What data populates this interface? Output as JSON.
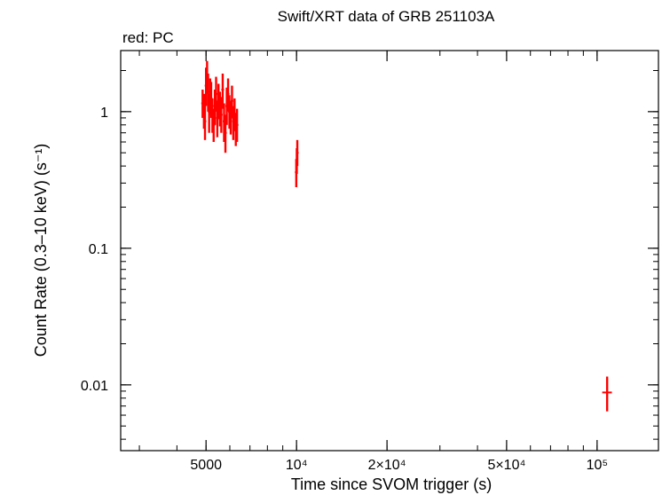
{
  "chart_data": {
    "type": "scatter",
    "title": "Swift/XRT data of GRB 251103A",
    "legend_text": "red: PC",
    "legend_placement": "top-left",
    "xlabel": "Time since SVOM trigger (s)",
    "ylabel": "Count Rate (0.3–10 keV) (s⁻¹)",
    "x_scale": "log",
    "y_scale": "log",
    "xlim": [
      2600,
      160000
    ],
    "ylim": [
      0.0033,
      2.8
    ],
    "grid": false,
    "x_ticks": [
      {
        "value": 5000,
        "label": "5000"
      },
      {
        "value": 10000,
        "label": "10⁴"
      },
      {
        "value": 20000,
        "label": "2×10⁴"
      },
      {
        "value": 50000,
        "label": "5×10⁴"
      },
      {
        "value": 100000,
        "label": "10⁵"
      }
    ],
    "y_ticks": [
      {
        "value": 1,
        "label": "1"
      },
      {
        "value": 0.1,
        "label": "0.1"
      },
      {
        "value": 0.01,
        "label": "0.01"
      }
    ],
    "series_color": "#ff0000",
    "series": [
      {
        "points": [
          {
            "x": 4870,
            "y": 1.15,
            "ylo": 0.9,
            "yhi": 1.45
          },
          {
            "x": 4920,
            "y": 1.05,
            "ylo": 0.75,
            "yhi": 1.35
          },
          {
            "x": 4960,
            "y": 0.85,
            "ylo": 0.62,
            "yhi": 1.1
          },
          {
            "x": 5000,
            "y": 1.55,
            "ylo": 1.1,
            "yhi": 2.1
          },
          {
            "x": 5040,
            "y": 1.8,
            "ylo": 1.35,
            "yhi": 2.35
          },
          {
            "x": 5080,
            "y": 1.4,
            "ylo": 1.0,
            "yhi": 1.9
          },
          {
            "x": 5120,
            "y": 1.0,
            "ylo": 0.7,
            "yhi": 1.35
          },
          {
            "x": 5160,
            "y": 1.3,
            "ylo": 0.95,
            "yhi": 1.75
          },
          {
            "x": 5200,
            "y": 1.25,
            "ylo": 0.9,
            "yhi": 1.65
          },
          {
            "x": 5250,
            "y": 0.95,
            "ylo": 0.7,
            "yhi": 1.25
          },
          {
            "x": 5300,
            "y": 0.8,
            "ylo": 0.6,
            "yhi": 1.05
          },
          {
            "x": 5350,
            "y": 1.1,
            "ylo": 0.8,
            "yhi": 1.45
          },
          {
            "x": 5400,
            "y": 1.35,
            "ylo": 1.0,
            "yhi": 1.8
          },
          {
            "x": 5450,
            "y": 0.9,
            "ylo": 0.65,
            "yhi": 1.2
          },
          {
            "x": 5500,
            "y": 1.2,
            "ylo": 0.88,
            "yhi": 1.6
          },
          {
            "x": 5560,
            "y": 1.05,
            "ylo": 0.78,
            "yhi": 1.4
          },
          {
            "x": 5620,
            "y": 0.95,
            "ylo": 0.7,
            "yhi": 1.28
          },
          {
            "x": 5680,
            "y": 1.45,
            "ylo": 1.05,
            "yhi": 1.9
          },
          {
            "x": 5740,
            "y": 0.85,
            "ylo": 0.6,
            "yhi": 1.15
          },
          {
            "x": 5800,
            "y": 0.7,
            "ylo": 0.5,
            "yhi": 0.95
          },
          {
            "x": 5860,
            "y": 1.1,
            "ylo": 0.8,
            "yhi": 1.5
          },
          {
            "x": 5920,
            "y": 1.35,
            "ylo": 1.0,
            "yhi": 1.75
          },
          {
            "x": 5980,
            "y": 1.0,
            "ylo": 0.75,
            "yhi": 1.32
          },
          {
            "x": 6040,
            "y": 0.9,
            "ylo": 0.68,
            "yhi": 1.2
          },
          {
            "x": 6100,
            "y": 1.2,
            "ylo": 0.9,
            "yhi": 1.55
          },
          {
            "x": 6160,
            "y": 0.85,
            "ylo": 0.62,
            "yhi": 1.1
          },
          {
            "x": 6220,
            "y": 0.95,
            "ylo": 0.72,
            "yhi": 1.25
          },
          {
            "x": 6280,
            "y": 0.75,
            "ylo": 0.56,
            "yhi": 0.98
          },
          {
            "x": 6340,
            "y": 0.8,
            "ylo": 0.6,
            "yhi": 1.05
          },
          {
            "x": 9980,
            "y": 0.36,
            "ylo": 0.28,
            "yhi": 0.45
          },
          {
            "x": 10020,
            "y": 0.44,
            "ylo": 0.35,
            "yhi": 0.54
          },
          {
            "x": 10060,
            "y": 0.5,
            "ylo": 0.4,
            "yhi": 0.62
          },
          {
            "x": 108000,
            "y": 0.0088,
            "ylo": 0.0064,
            "yhi": 0.0115,
            "xlo": 104000,
            "xhi": 112000
          }
        ]
      }
    ]
  }
}
